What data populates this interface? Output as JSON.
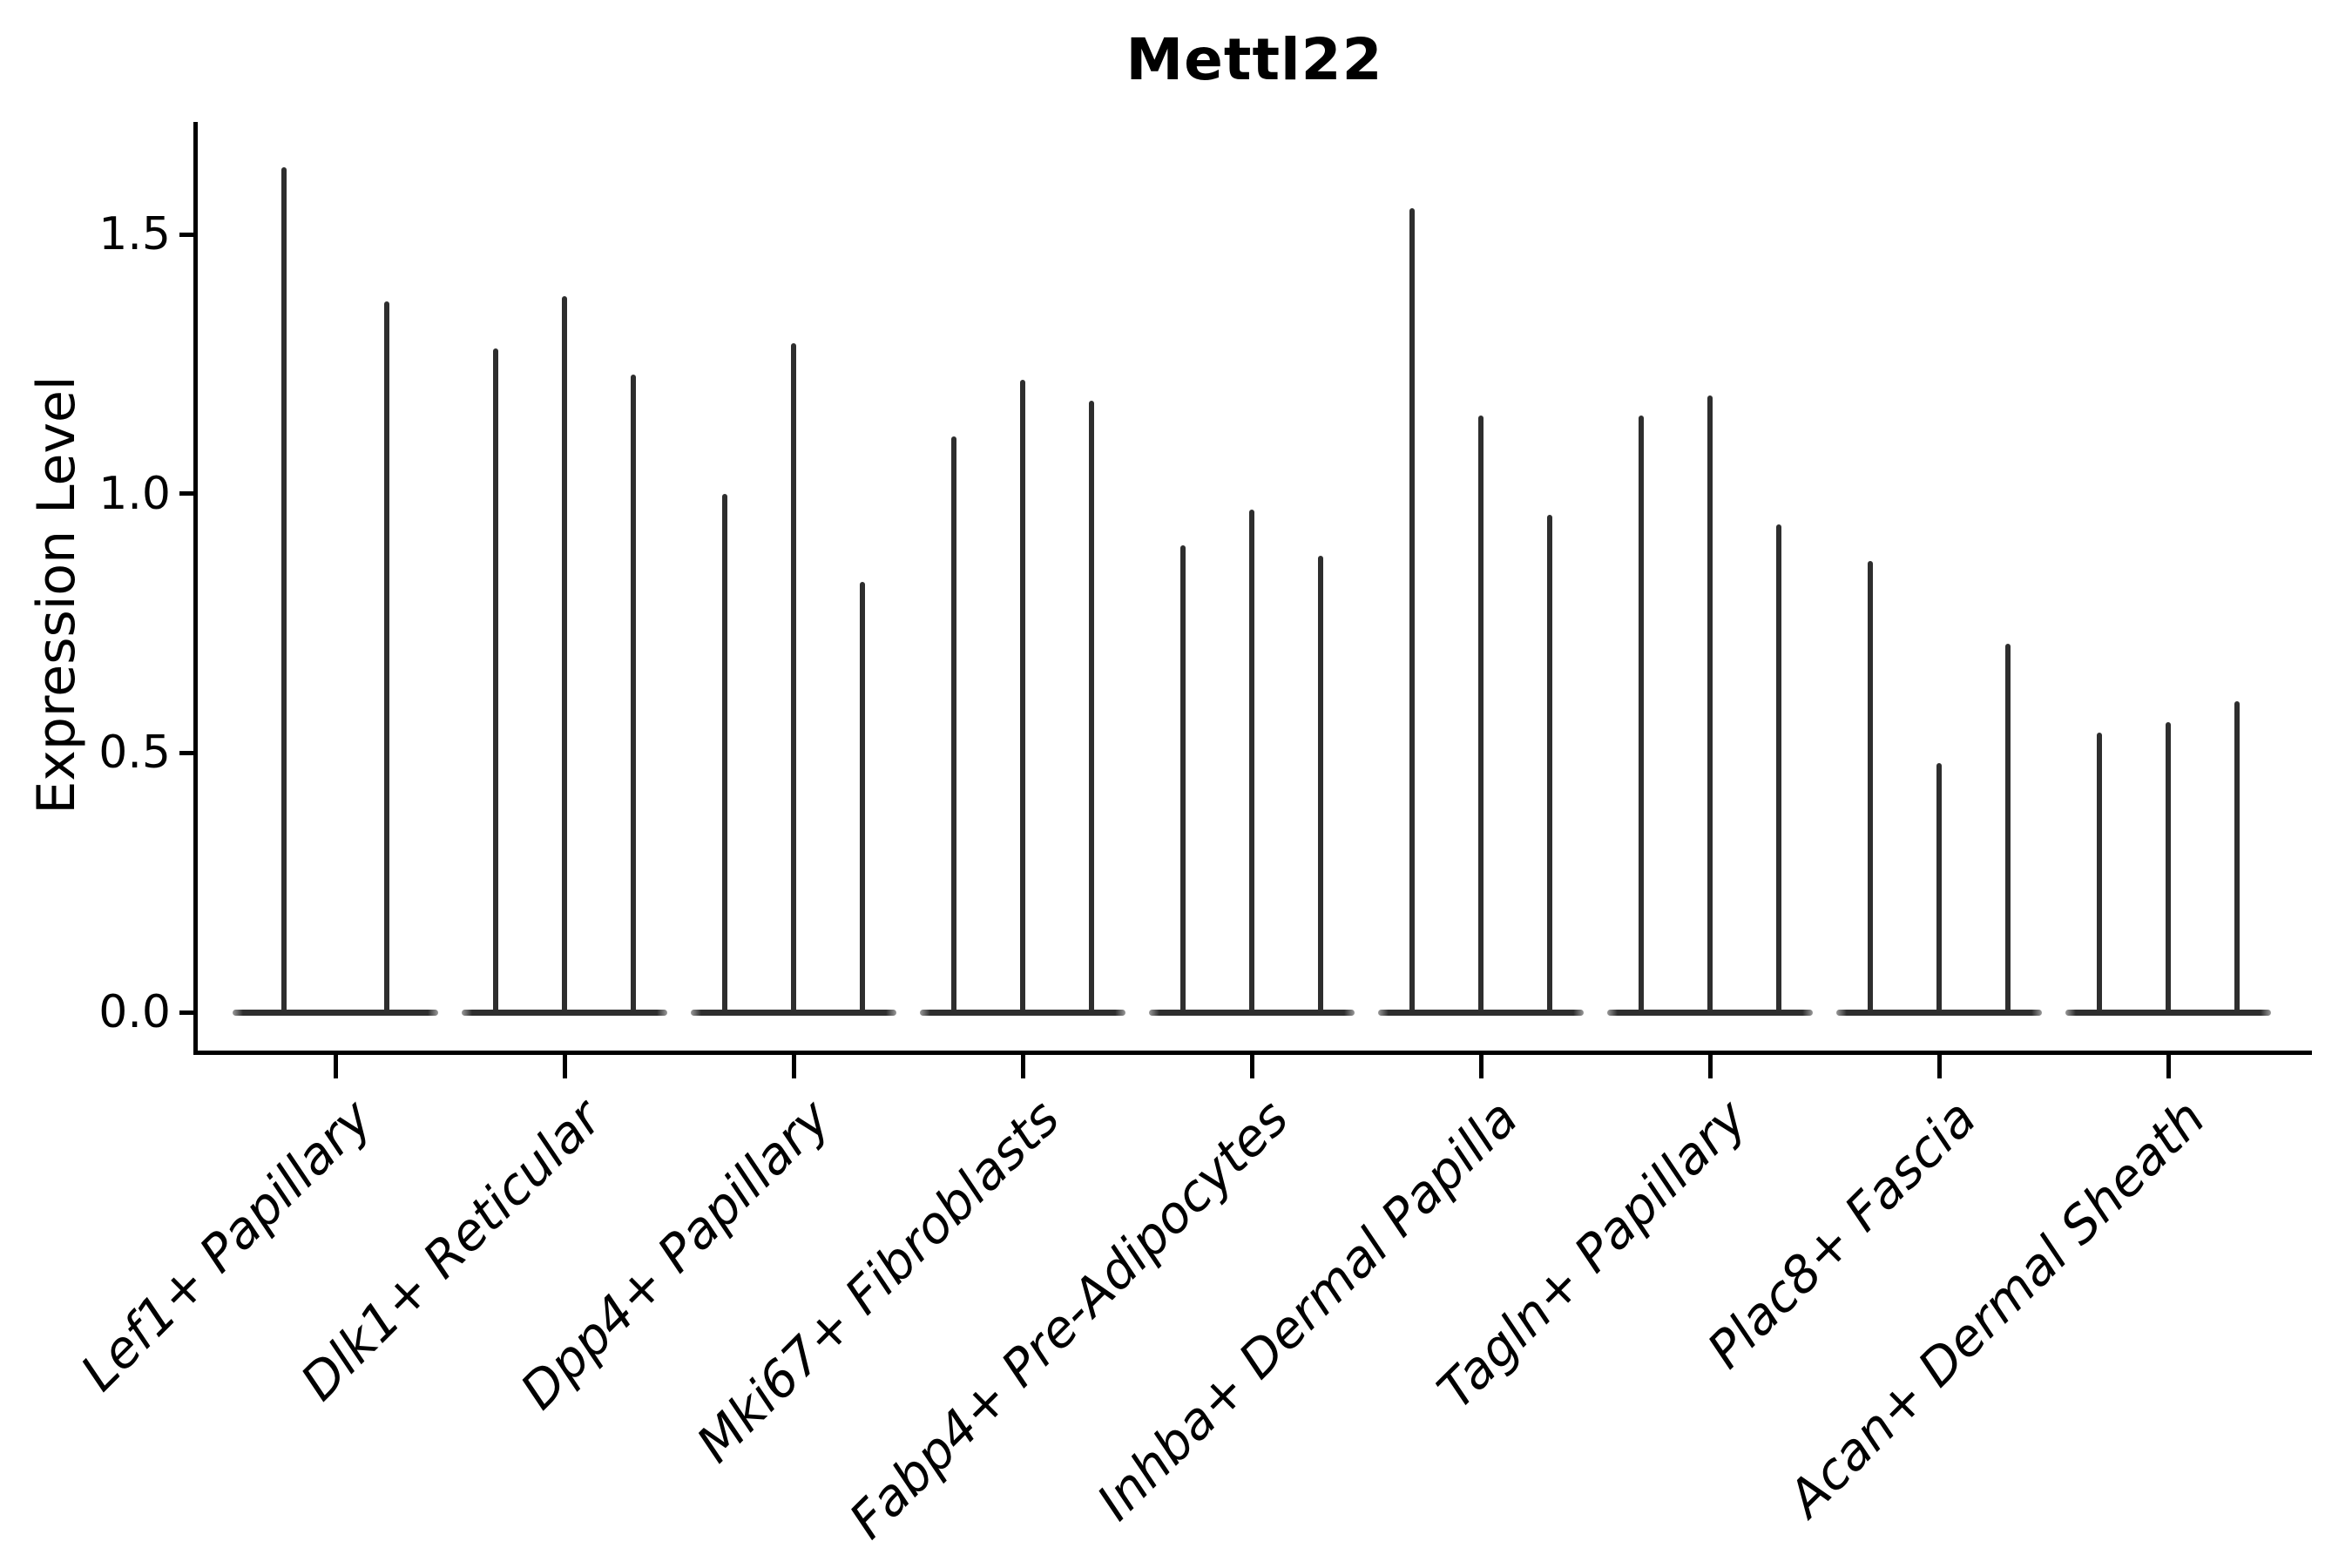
{
  "chart_data": {
    "type": "violin",
    "title": "Mettl22",
    "ylabel": "Expression Level",
    "xlabel": "",
    "grid": false,
    "legend": null,
    "ylim": [
      -0.08,
      1.72
    ],
    "yticks": [
      {
        "label": "0.0",
        "value": 0.0
      },
      {
        "label": "0.5",
        "value": 0.5
      },
      {
        "label": "1.0",
        "value": 1.0
      },
      {
        "label": "1.5",
        "value": 1.5
      }
    ],
    "categories": [
      "Lef1+ Papillary",
      "Dlk1+ Reticular",
      "Dpp4+ Papillary",
      "Mki67+ Fibroblasts",
      "Fabp4+ Pre-Adipocytes",
      "Inhba+ Dermal Papilla",
      "Tagln+ Papillary",
      "Plac8+ Fascia",
      "Acan+ Dermal Sheath"
    ],
    "groups": [
      {
        "category": "Lef1+ Papillary",
        "violin_peaks": [
          1.63,
          1.37
        ]
      },
      {
        "category": "Dlk1+ Reticular",
        "violin_peaks": [
          1.28,
          1.38,
          1.23
        ]
      },
      {
        "category": "Dpp4+ Papillary",
        "violin_peaks": [
          1.0,
          1.29,
          0.83
        ]
      },
      {
        "category": "Mki67+ Fibroblasts",
        "violin_peaks": [
          1.11,
          1.22,
          1.18
        ]
      },
      {
        "category": "Fabp4+ Pre-Adipocytes",
        "violin_peaks": [
          0.9,
          0.97,
          0.88
        ]
      },
      {
        "category": "Inhba+ Dermal Papilla",
        "violin_peaks": [
          1.55,
          1.15,
          0.96
        ]
      },
      {
        "category": "Tagln+ Papillary",
        "violin_peaks": [
          1.15,
          1.19,
          0.94
        ]
      },
      {
        "category": "Plac8+ Fascia",
        "violin_peaks": [
          0.87,
          0.48,
          0.71
        ]
      },
      {
        "category": "Acan+ Dermal Sheath",
        "violin_peaks": [
          0.54,
          0.56,
          0.6
        ]
      }
    ],
    "violin_description": "Sparse single-cell expression violins: each violin collapses to a thin vertical spike reaching its peak expression value, with a flat zero-density body on the baseline.",
    "colors": {
      "violin": "#2e2e2e",
      "text": "#000000",
      "spine": "#000000"
    }
  }
}
